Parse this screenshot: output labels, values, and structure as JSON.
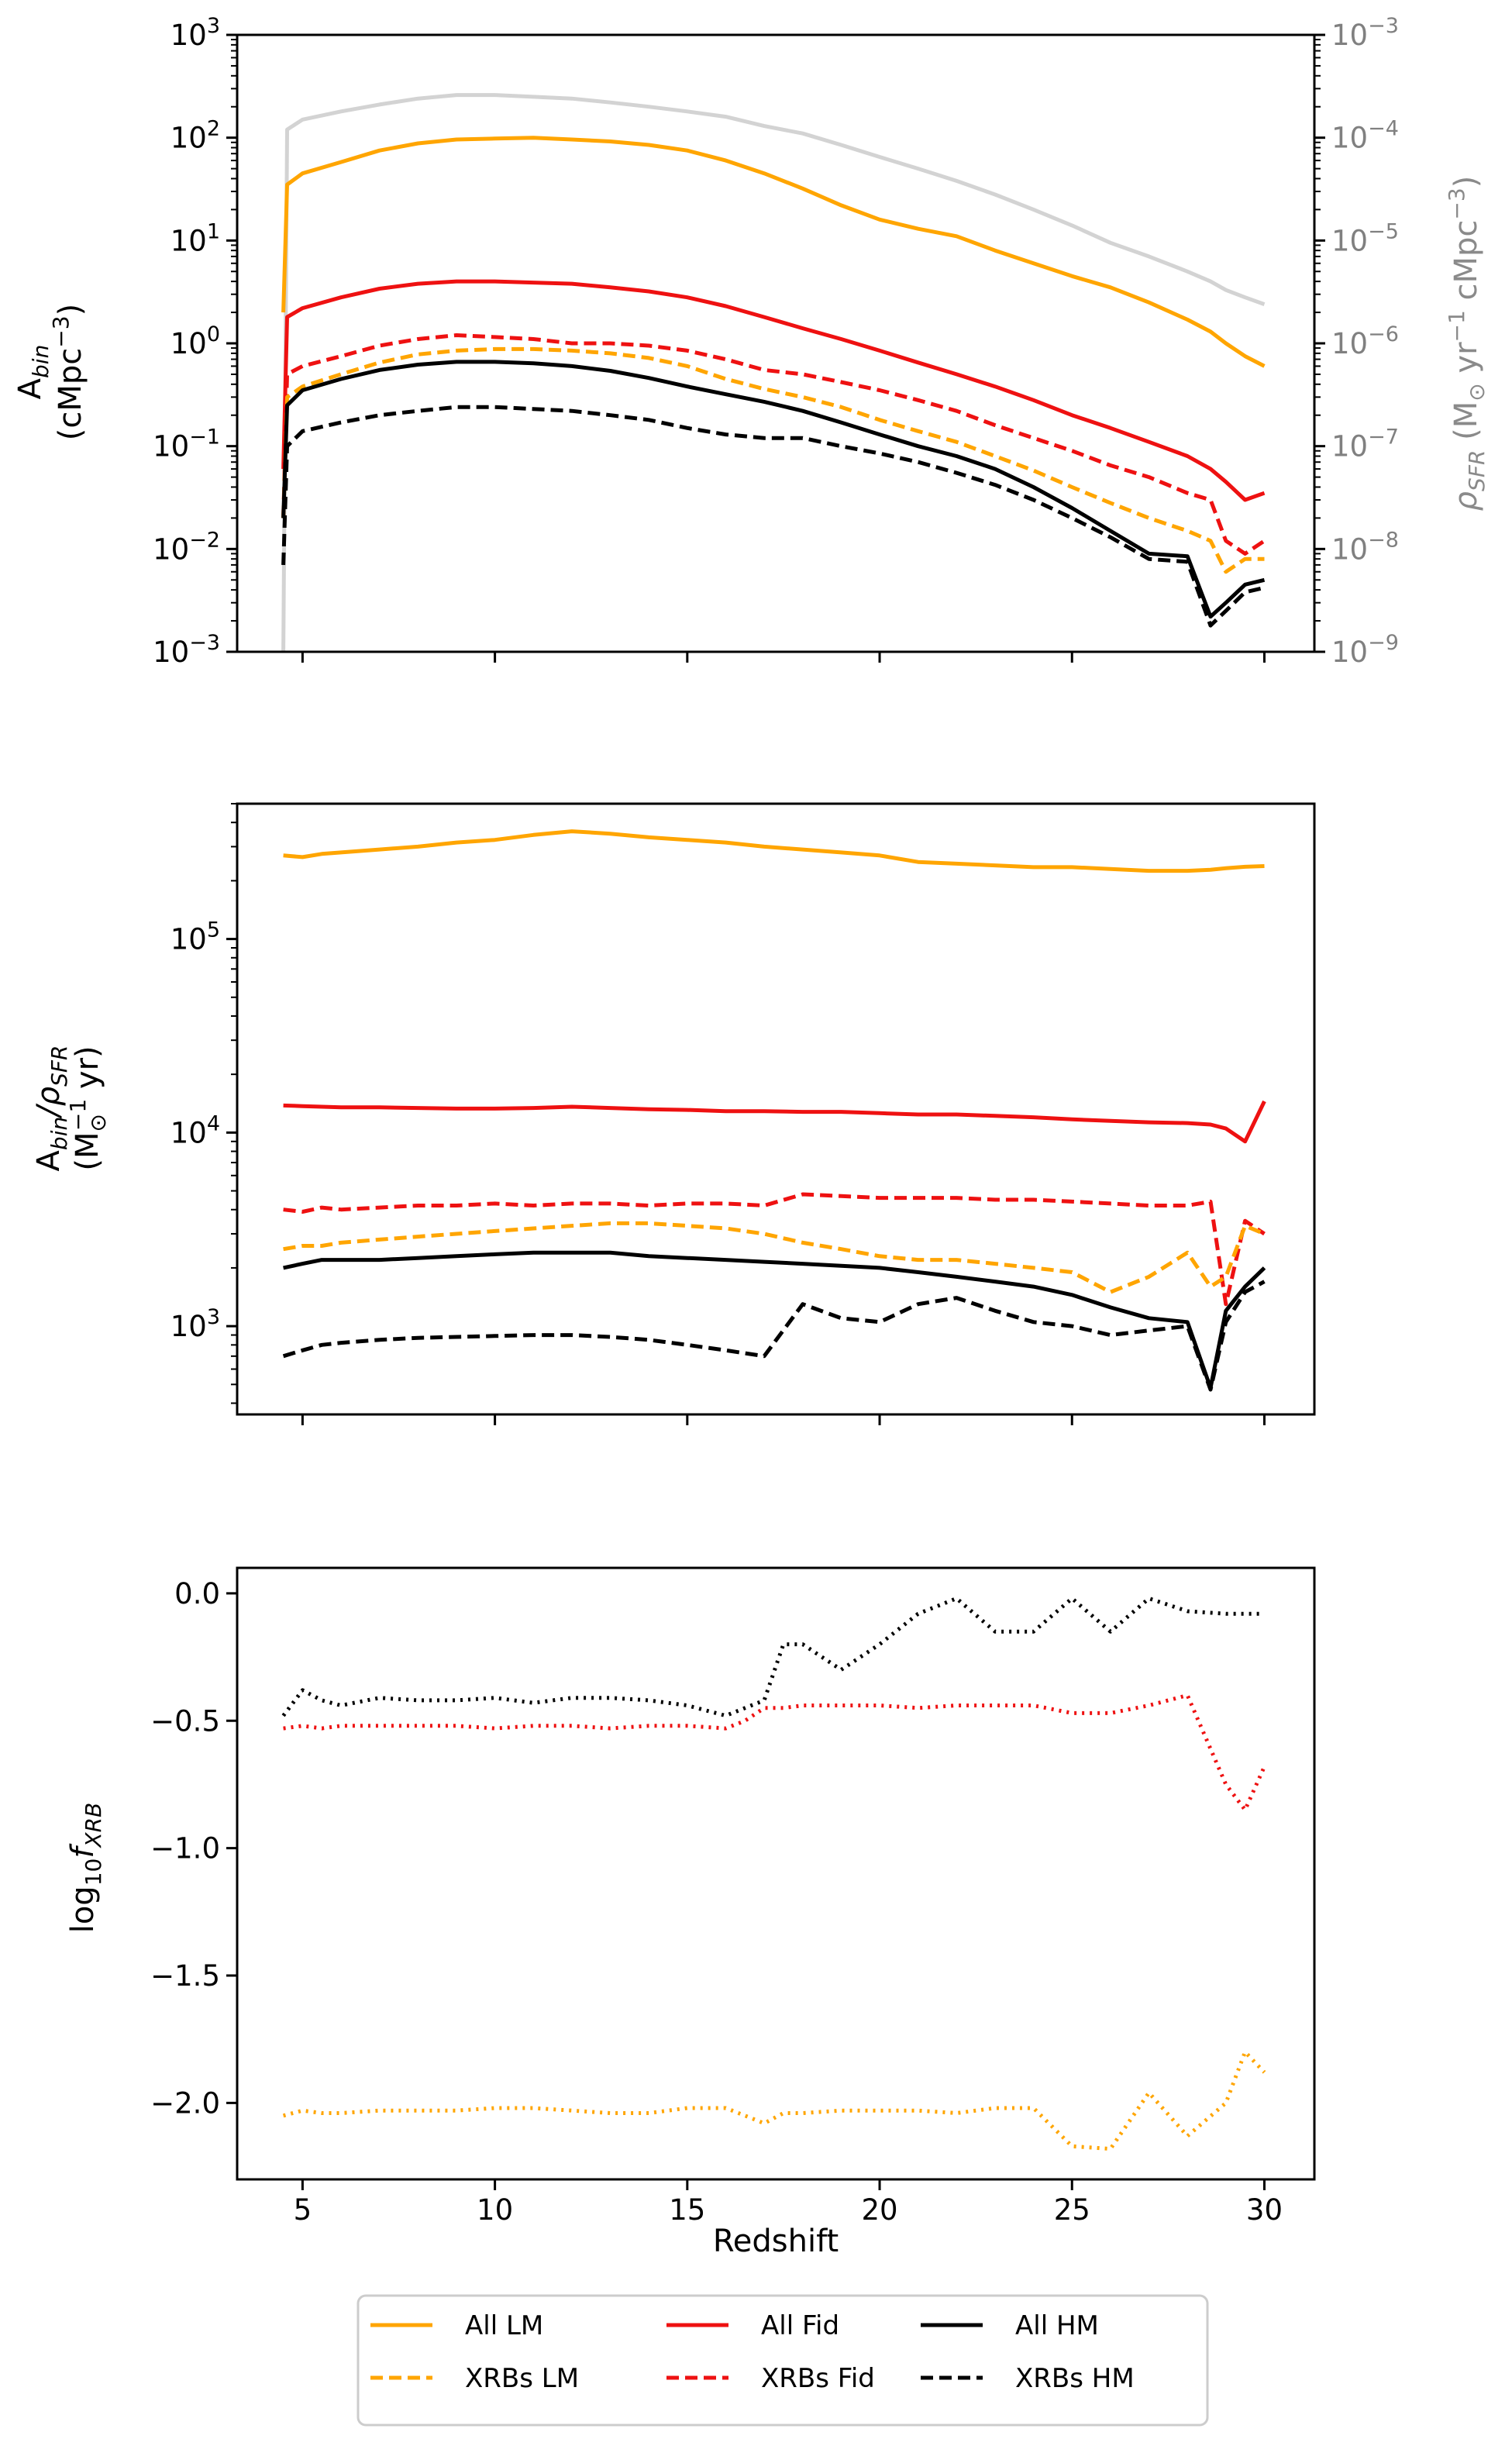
{
  "figure": {
    "xlabel": "Redshift",
    "x_ticks": [
      "5",
      "10",
      "15",
      "20",
      "25",
      "30"
    ]
  },
  "colors": {
    "lm": "#FFA500",
    "fid": "#EE1111",
    "hm": "#000000",
    "sfr": "#D3D3D3",
    "right_axis": "#808080"
  },
  "legend": {
    "entries": [
      {
        "label": "All LM",
        "style": "solid",
        "color": "#FFA500"
      },
      {
        "label": "XRBs LM",
        "style": "dashed",
        "color": "#FFA500"
      },
      {
        "label": "All Fid",
        "style": "solid",
        "color": "#EE1111"
      },
      {
        "label": "XRBs Fid",
        "style": "dashed",
        "color": "#EE1111"
      },
      {
        "label": "All HM",
        "style": "solid",
        "color": "#000000"
      },
      {
        "label": "XRBs HM",
        "style": "dashed",
        "color": "#000000"
      }
    ]
  },
  "chart_data": [
    {
      "type": "line",
      "panel": "top",
      "yscale": "log",
      "ylabel": [
        "A",
        "bin",
        "(cMpc",
        "−3",
        ")"
      ],
      "ylim": [
        0.001,
        1000
      ],
      "xlim": [
        3.3,
        31.3
      ],
      "y_ticks": [
        {
          "base": "10",
          "exp": "3"
        },
        {
          "base": "10",
          "exp": "2"
        },
        {
          "base": "10",
          "exp": "1"
        },
        {
          "base": "10",
          "exp": "0"
        },
        {
          "base": "10",
          "exp": "−1"
        },
        {
          "base": "10",
          "exp": "−2"
        },
        {
          "base": "10",
          "exp": "−3"
        }
      ],
      "right_axis": {
        "ylim": [
          1e-09,
          0.001
        ],
        "ylabel": [
          "ρ",
          "SFR",
          " (M",
          "⊙",
          " yr",
          "−1",
          " cMpc",
          "−3",
          ")"
        ],
        "y_ticks": [
          {
            "base": "10",
            "exp": "−3"
          },
          {
            "base": "10",
            "exp": "−4"
          },
          {
            "base": "10",
            "exp": "−5"
          },
          {
            "base": "10",
            "exp": "−6"
          },
          {
            "base": "10",
            "exp": "−7"
          },
          {
            "base": "10",
            "exp": "−8"
          },
          {
            "base": "10",
            "exp": "−9"
          }
        ]
      },
      "x": [
        4.5,
        4.6,
        5,
        6,
        7,
        8,
        9,
        10,
        11,
        12,
        13,
        14,
        15,
        16,
        17,
        18,
        19,
        20,
        21,
        22,
        23,
        24,
        25,
        26,
        27,
        28,
        28.6,
        29,
        29.5,
        30
      ],
      "series": [
        {
          "name": "ρSFR",
          "color": "#D3D3D3",
          "style": "solid",
          "axis": "right",
          "values": [
            1e-09,
            0.00012,
            0.00015,
            0.00018,
            0.00021,
            0.00024,
            0.00026,
            0.00026,
            0.00025,
            0.00024,
            0.00022,
            0.0002,
            0.00018,
            0.00016,
            0.00013,
            0.00011,
            8.5e-05,
            6.5e-05,
            5e-05,
            3.8e-05,
            2.8e-05,
            2e-05,
            1.4e-05,
            9.5e-06,
            7e-06,
            5e-06,
            4e-06,
            3.3e-06,
            2.8e-06,
            2.4e-06
          ]
        },
        {
          "name": "All LM",
          "color": "#FFA500",
          "style": "solid",
          "axis": "left",
          "values": [
            2,
            35,
            45,
            58,
            75,
            88,
            96,
            98,
            100,
            96,
            92,
            85,
            75,
            60,
            45,
            32,
            22,
            16,
            13,
            11,
            8,
            6,
            4.5,
            3.5,
            2.5,
            1.7,
            1.3,
            1,
            0.75,
            0.6
          ]
        },
        {
          "name": "All Fid",
          "color": "#EE1111",
          "style": "solid",
          "axis": "left",
          "values": [
            0.06,
            1.8,
            2.2,
            2.8,
            3.4,
            3.8,
            4,
            4,
            3.9,
            3.8,
            3.5,
            3.2,
            2.8,
            2.3,
            1.8,
            1.4,
            1.1,
            0.85,
            0.65,
            0.5,
            0.38,
            0.28,
            0.2,
            0.15,
            0.11,
            0.08,
            0.06,
            0.045,
            0.03,
            0.035
          ]
        },
        {
          "name": "XRBs Fid",
          "color": "#EE1111",
          "style": "dashed",
          "axis": "left",
          "values": [
            0.02,
            0.5,
            0.6,
            0.75,
            0.95,
            1.1,
            1.2,
            1.15,
            1.1,
            1,
            1,
            0.95,
            0.85,
            0.7,
            0.55,
            0.5,
            0.42,
            0.35,
            0.28,
            0.22,
            0.16,
            0.12,
            0.09,
            0.065,
            0.05,
            0.035,
            0.03,
            0.012,
            0.009,
            0.012
          ]
        },
        {
          "name": "XRBs LM",
          "color": "#FFA500",
          "style": "dashed",
          "axis": "left",
          "values": [
            0.02,
            0.3,
            0.38,
            0.5,
            0.65,
            0.78,
            0.85,
            0.88,
            0.88,
            0.85,
            0.8,
            0.72,
            0.6,
            0.45,
            0.36,
            0.3,
            0.24,
            0.18,
            0.14,
            0.11,
            0.08,
            0.058,
            0.04,
            0.028,
            0.02,
            0.015,
            0.012,
            0.006,
            0.008,
            0.008
          ]
        },
        {
          "name": "All HM",
          "color": "#000000",
          "style": "solid",
          "axis": "left",
          "values": [
            0.02,
            0.25,
            0.35,
            0.45,
            0.55,
            0.62,
            0.66,
            0.66,
            0.64,
            0.6,
            0.54,
            0.46,
            0.38,
            0.32,
            0.27,
            0.22,
            0.17,
            0.13,
            0.1,
            0.08,
            0.06,
            0.04,
            0.025,
            0.015,
            0.009,
            0.0085,
            0.0022,
            0.003,
            0.0045,
            0.005
          ]
        },
        {
          "name": "XRBs HM",
          "color": "#000000",
          "style": "dashed",
          "axis": "left",
          "values": [
            0.007,
            0.1,
            0.14,
            0.17,
            0.2,
            0.22,
            0.24,
            0.24,
            0.23,
            0.22,
            0.2,
            0.18,
            0.15,
            0.13,
            0.12,
            0.12,
            0.1,
            0.085,
            0.07,
            0.055,
            0.042,
            0.03,
            0.02,
            0.013,
            0.008,
            0.0075,
            0.0018,
            0.0025,
            0.0038,
            0.0042
          ]
        }
      ]
    },
    {
      "type": "line",
      "panel": "middle",
      "yscale": "log",
      "ylabel": [
        "A",
        "bin",
        "/ρ",
        "SFR",
        "(M",
        "⊙",
        "−1",
        " yr)"
      ],
      "ylim": [
        350,
        500000
      ],
      "xlim": [
        3.3,
        31.3
      ],
      "y_ticks": [
        {
          "base": "10",
          "exp": "5",
          "value": 100000
        },
        {
          "base": "10",
          "exp": "4",
          "value": 10000
        },
        {
          "base": "10",
          "exp": "3",
          "value": 1000
        }
      ],
      "x": [
        4.5,
        5,
        5.5,
        6,
        7,
        8,
        9,
        10,
        11,
        12,
        13,
        14,
        15,
        16,
        17,
        18,
        19,
        20,
        21,
        22,
        23,
        24,
        25,
        26,
        27,
        28,
        28.6,
        29,
        29.5,
        30
      ],
      "series": [
        {
          "name": "All LM",
          "color": "#FFA500",
          "style": "solid",
          "values": [
            270000,
            265000,
            275000,
            280000,
            290000,
            300000,
            315000,
            325000,
            345000,
            360000,
            350000,
            335000,
            325000,
            315000,
            300000,
            290000,
            280000,
            270000,
            250000,
            245000,
            240000,
            235000,
            235000,
            230000,
            225000,
            225000,
            228000,
            232000,
            236000,
            238000
          ]
        },
        {
          "name": "All Fid",
          "color": "#EE1111",
          "style": "solid",
          "values": [
            13800,
            13700,
            13600,
            13500,
            13500,
            13400,
            13300,
            13300,
            13400,
            13600,
            13400,
            13200,
            13100,
            12900,
            12900,
            12800,
            12800,
            12600,
            12400,
            12400,
            12200,
            12000,
            11700,
            11500,
            11300,
            11200,
            11000,
            10500,
            9000,
            14500
          ]
        },
        {
          "name": "XRBs Fid",
          "color": "#EE1111",
          "style": "dashed",
          "values": [
            4000,
            3900,
            4100,
            4000,
            4100,
            4200,
            4200,
            4300,
            4200,
            4300,
            4300,
            4200,
            4300,
            4300,
            4200,
            4800,
            4700,
            4600,
            4600,
            4600,
            4500,
            4500,
            4400,
            4300,
            4200,
            4200,
            4400,
            1300,
            3500,
            3000
          ]
        },
        {
          "name": "XRBs LM",
          "color": "#FFA500",
          "style": "dashed",
          "values": [
            2500,
            2600,
            2600,
            2700,
            2800,
            2900,
            3000,
            3100,
            3200,
            3300,
            3400,
            3400,
            3300,
            3200,
            3000,
            2700,
            2500,
            2300,
            2200,
            2200,
            2100,
            2000,
            1900,
            1500,
            1800,
            2400,
            1600,
            1800,
            3300,
            3000
          ]
        },
        {
          "name": "All HM",
          "color": "#000000",
          "style": "solid",
          "values": [
            2000,
            2100,
            2200,
            2200,
            2200,
            2250,
            2300,
            2350,
            2400,
            2400,
            2400,
            2300,
            2250,
            2200,
            2150,
            2100,
            2050,
            2000,
            1900,
            1800,
            1700,
            1600,
            1450,
            1250,
            1100,
            1050,
            480,
            1200,
            1600,
            2000
          ]
        },
        {
          "name": "XRBs HM",
          "color": "#000000",
          "style": "dashed",
          "values": [
            700,
            750,
            800,
            820,
            850,
            870,
            880,
            890,
            900,
            900,
            880,
            850,
            800,
            750,
            700,
            1300,
            1100,
            1050,
            1300,
            1400,
            1200,
            1050,
            1000,
            900,
            950,
            1000,
            470,
            1050,
            1500,
            1700
          ]
        }
      ]
    },
    {
      "type": "line",
      "panel": "bottom",
      "yscale": "linear",
      "ylabel": [
        "log",
        "10",
        "f",
        "XRB"
      ],
      "ylim": [
        -2.3,
        0.1
      ],
      "xlim": [
        3.3,
        31.3
      ],
      "y_ticks": [
        {
          "label": "0.0",
          "value": 0.0
        },
        {
          "label": "−0.5",
          "value": -0.5
        },
        {
          "label": "−1.0",
          "value": -1.0
        },
        {
          "label": "−1.5",
          "value": -1.5
        },
        {
          "label": "−2.0",
          "value": -2.0
        }
      ],
      "x": [
        4.5,
        5,
        5.5,
        6,
        7,
        8,
        9,
        10,
        11,
        12,
        13,
        14,
        15,
        16,
        16.5,
        17,
        17.5,
        18,
        19,
        20,
        21,
        22,
        23,
        24,
        25,
        26,
        27,
        28,
        29,
        29.5,
        30
      ],
      "series": [
        {
          "name": "HM",
          "color": "#000000",
          "style": "dotted",
          "values": [
            -0.48,
            -0.38,
            -0.42,
            -0.44,
            -0.41,
            -0.42,
            -0.42,
            -0.41,
            -0.43,
            -0.41,
            -0.41,
            -0.42,
            -0.44,
            -0.48,
            -0.45,
            -0.42,
            -0.2,
            -0.2,
            -0.3,
            -0.2,
            -0.08,
            -0.02,
            -0.15,
            -0.15,
            -0.02,
            -0.15,
            -0.02,
            -0.07,
            -0.08,
            -0.08,
            -0.08
          ]
        },
        {
          "name": "Fid",
          "color": "#EE1111",
          "style": "dotted",
          "values": [
            -0.53,
            -0.52,
            -0.53,
            -0.52,
            -0.52,
            -0.52,
            -0.52,
            -0.53,
            -0.52,
            -0.52,
            -0.53,
            -0.52,
            -0.52,
            -0.53,
            -0.5,
            -0.45,
            -0.45,
            -0.44,
            -0.44,
            -0.44,
            -0.45,
            -0.44,
            -0.44,
            -0.44,
            -0.47,
            -0.47,
            -0.44,
            -0.4,
            -0.75,
            -0.85,
            -0.68
          ]
        },
        {
          "name": "LM",
          "color": "#FFA500",
          "style": "dotted",
          "values": [
            -2.05,
            -2.03,
            -2.04,
            -2.04,
            -2.03,
            -2.03,
            -2.03,
            -2.02,
            -2.02,
            -2.03,
            -2.04,
            -2.04,
            -2.02,
            -2.02,
            -2.05,
            -2.08,
            -2.04,
            -2.04,
            -2.03,
            -2.03,
            -2.03,
            -2.04,
            -2.02,
            -2.02,
            -2.17,
            -2.18,
            -1.96,
            -2.13,
            -2.0,
            -1.8,
            -1.88
          ]
        }
      ]
    }
  ]
}
